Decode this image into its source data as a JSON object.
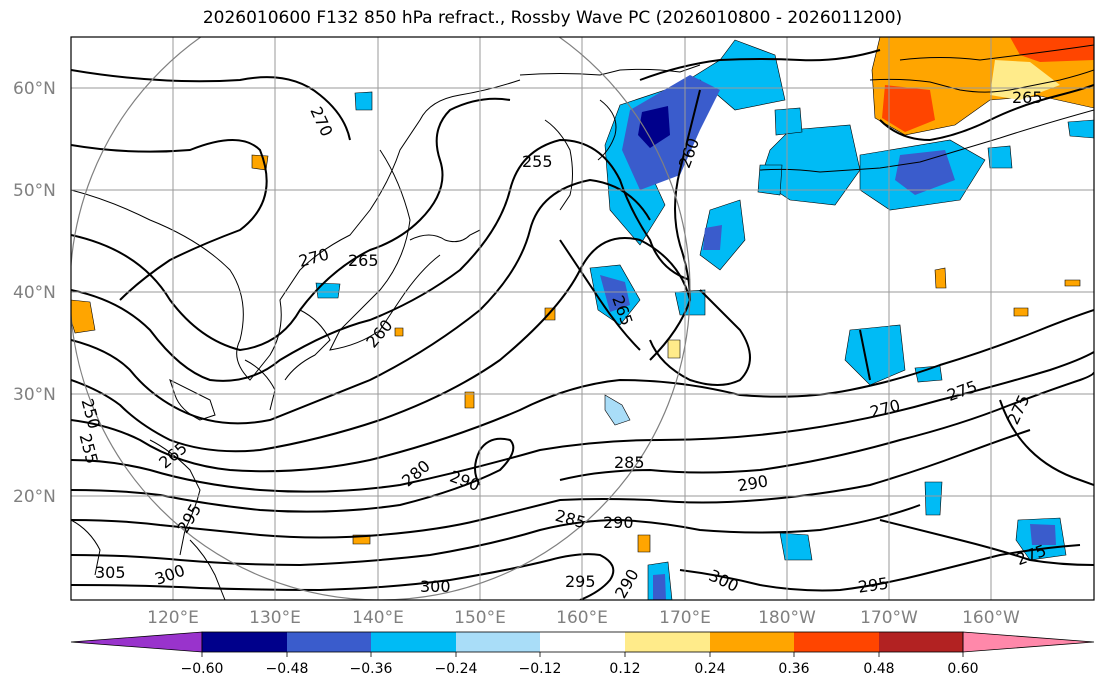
{
  "title": "2026010600 F132 850 hPa refract., Rossby Wave PC (2026010800 - 2026011200)",
  "lat_ticks": [
    "60°N",
    "50°N",
    "40°N",
    "30°N",
    "20°N"
  ],
  "lon_ticks": [
    "120°E",
    "130°E",
    "140°E",
    "150°E",
    "160°E",
    "170°E",
    "180°W",
    "170°W",
    "160°W"
  ],
  "contour_labels": [
    "270",
    "255",
    "260",
    "265",
    "270",
    "265",
    "260",
    "265",
    "250",
    "255",
    "280",
    "290",
    "285",
    "290",
    "270",
    "275",
    "275",
    "295",
    "285",
    "290",
    "305",
    "300",
    "300",
    "295",
    "290",
    "300",
    "295",
    "275",
    "265"
  ],
  "colorbar": {
    "ticks": [
      "−0.60",
      "−0.48",
      "−0.36",
      "−0.24",
      "−0.12",
      "0.12",
      "0.24",
      "0.36",
      "0.48",
      "0.60"
    ],
    "colors": [
      "#9933cc",
      "#00008b",
      "#3a5ccc",
      "#00bbf5",
      "#a9ddf8",
      "#ffffff",
      "#ffeb8a",
      "#ffa500",
      "#ff4500",
      "#b22222",
      "#ff88aa"
    ]
  },
  "shading_colors": {
    "strong_neg": "#00008b",
    "mid_neg": "#3a5ccc",
    "neg": "#00bbf5",
    "weak_neg": "#a9ddf8",
    "weak_pos": "#ffeb8a",
    "pos": "#ffa500",
    "strong_pos": "#ff4500"
  }
}
